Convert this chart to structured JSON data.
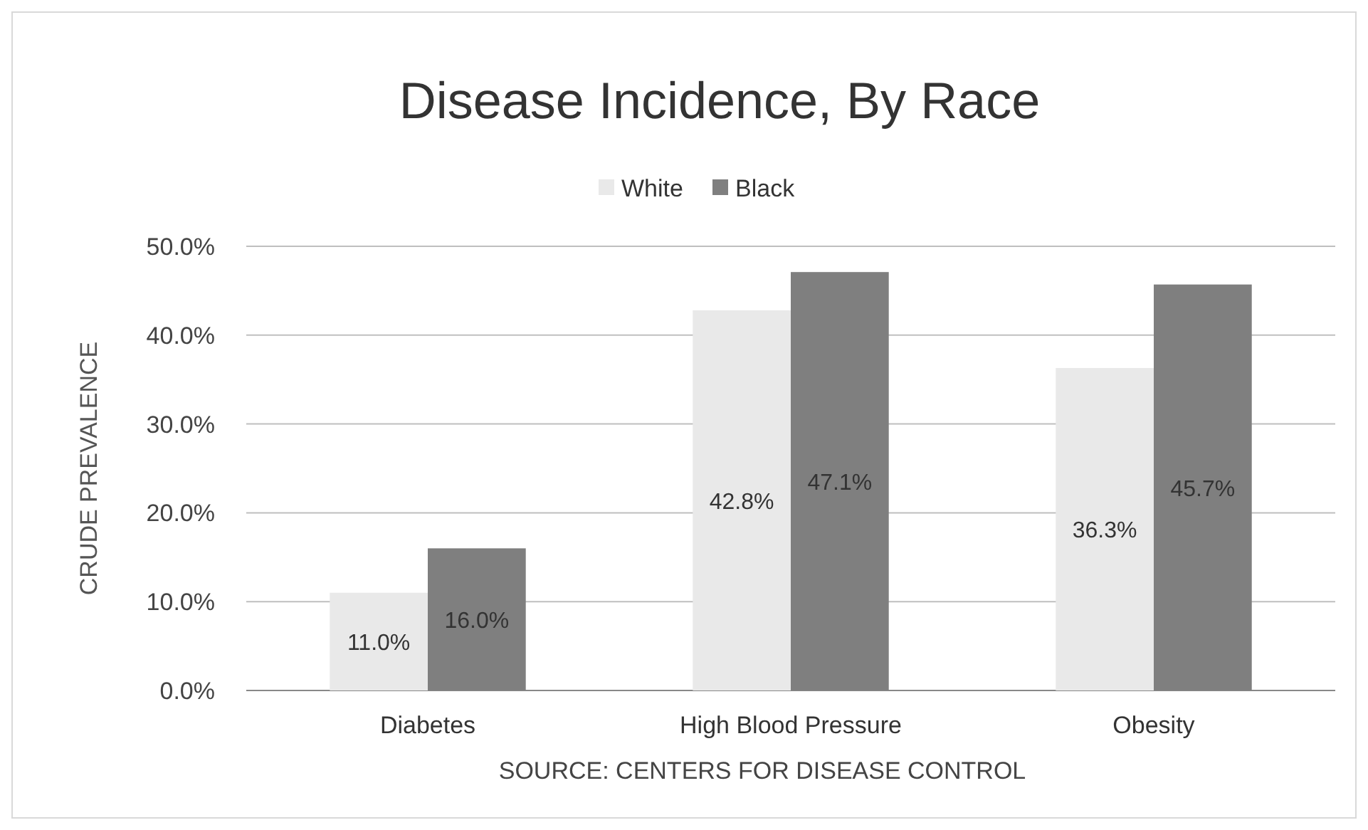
{
  "chart_data": {
    "type": "bar",
    "title": "Disease Incidence, By Race",
    "ylabel": "CRUDE PREVALENCE",
    "categories": [
      "Diabetes",
      "High Blood Pressure",
      "Obesity"
    ],
    "series": [
      {
        "name": "White",
        "color": "#e9e9e9",
        "values": [
          11.0,
          42.8,
          36.3
        ],
        "value_labels": [
          "11.0%",
          "42.8%",
          "36.3%"
        ]
      },
      {
        "name": "Black",
        "color": "#7f7f7f",
        "values": [
          16.0,
          47.1,
          45.7
        ],
        "value_labels": [
          "16.0%",
          "47.1%",
          "45.7%"
        ]
      }
    ],
    "ylim": [
      0,
      50
    ],
    "yticks": [
      {
        "value": 0,
        "label": "0.0%"
      },
      {
        "value": 10,
        "label": "10.0%"
      },
      {
        "value": 20,
        "label": "20.0%"
      },
      {
        "value": 30,
        "label": "30.0%"
      },
      {
        "value": 40,
        "label": "40.0%"
      },
      {
        "value": 50,
        "label": "50.0%"
      }
    ],
    "grid": "y",
    "legend": "top",
    "annotations": [
      "SOURCE: CENTERS FOR DISEASE CONTROL"
    ]
  }
}
